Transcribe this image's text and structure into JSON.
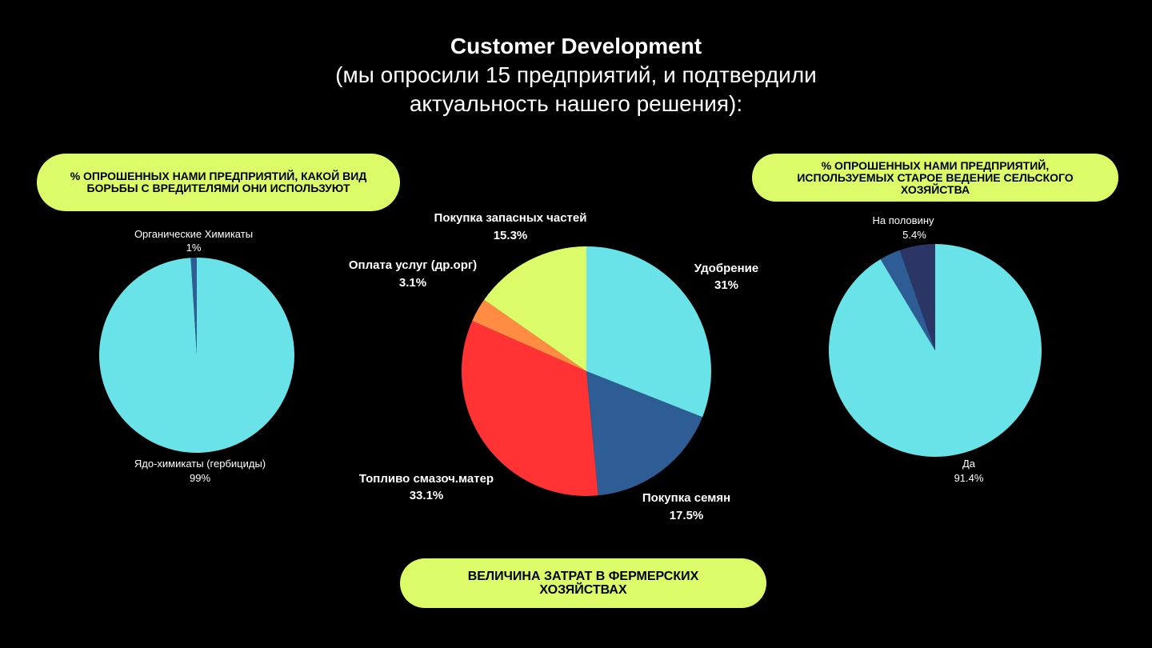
{
  "title": {
    "main": "Customer Development",
    "sub": "(мы опросили 15 предприятий, и подтвердили актуальность нашего решения):"
  },
  "pills": {
    "left": "% опрошенных нами предприятий, какой вид борьбы с вредителями они используют",
    "right": "% опрошенных нами предприятий, используемых старое ведение сельского хозяйства",
    "bottom": "Величина затрат в фермерских хозяйствах"
  },
  "colors": {
    "accent": "#dcfb68",
    "background": "#000000",
    "cyan": "#6ae3e8",
    "blue": "#2e5d96",
    "red": "#ff3333",
    "orange": "#ff8c42",
    "lime": "#dcfb68",
    "navy": "#2b3566"
  },
  "chart_data": [
    {
      "type": "pie",
      "title": "",
      "slices": [
        {
          "label": "Органические Химикаты",
          "value": 1,
          "display": "1%",
          "color": "#2e5d96"
        },
        {
          "label": "Ядо-химикаты (гербициды)",
          "value": 99,
          "display": "99%",
          "color": "#6ae3e8"
        }
      ]
    },
    {
      "type": "pie",
      "title": "",
      "slices": [
        {
          "label": "Удобрение",
          "value": 31,
          "display": "31%",
          "color": "#6ae3e8"
        },
        {
          "label": "Покупка семян",
          "value": 17.5,
          "display": "17.5%",
          "color": "#2e5d96"
        },
        {
          "label": "Топливо смазоч.матер",
          "value": 33.1,
          "display": "33.1%",
          "color": "#ff3333"
        },
        {
          "label": "Оплата услуг (др.орг)",
          "value": 3.1,
          "display": "3.1%",
          "color": "#ff8c42"
        },
        {
          "label": "Покупка запасных частей",
          "value": 15.3,
          "display": "15.3%",
          "color": "#dcfb68"
        }
      ]
    },
    {
      "type": "pie",
      "title": "",
      "slices": [
        {
          "label": "Да",
          "value": 91.4,
          "display": "91.4%",
          "color": "#6ae3e8"
        },
        {
          "label": "",
          "value": 3.2,
          "display": "",
          "color": "#2e5d96"
        },
        {
          "label": "На половину",
          "value": 5.4,
          "display": "5.4%",
          "color": "#2b3566"
        }
      ]
    }
  ]
}
